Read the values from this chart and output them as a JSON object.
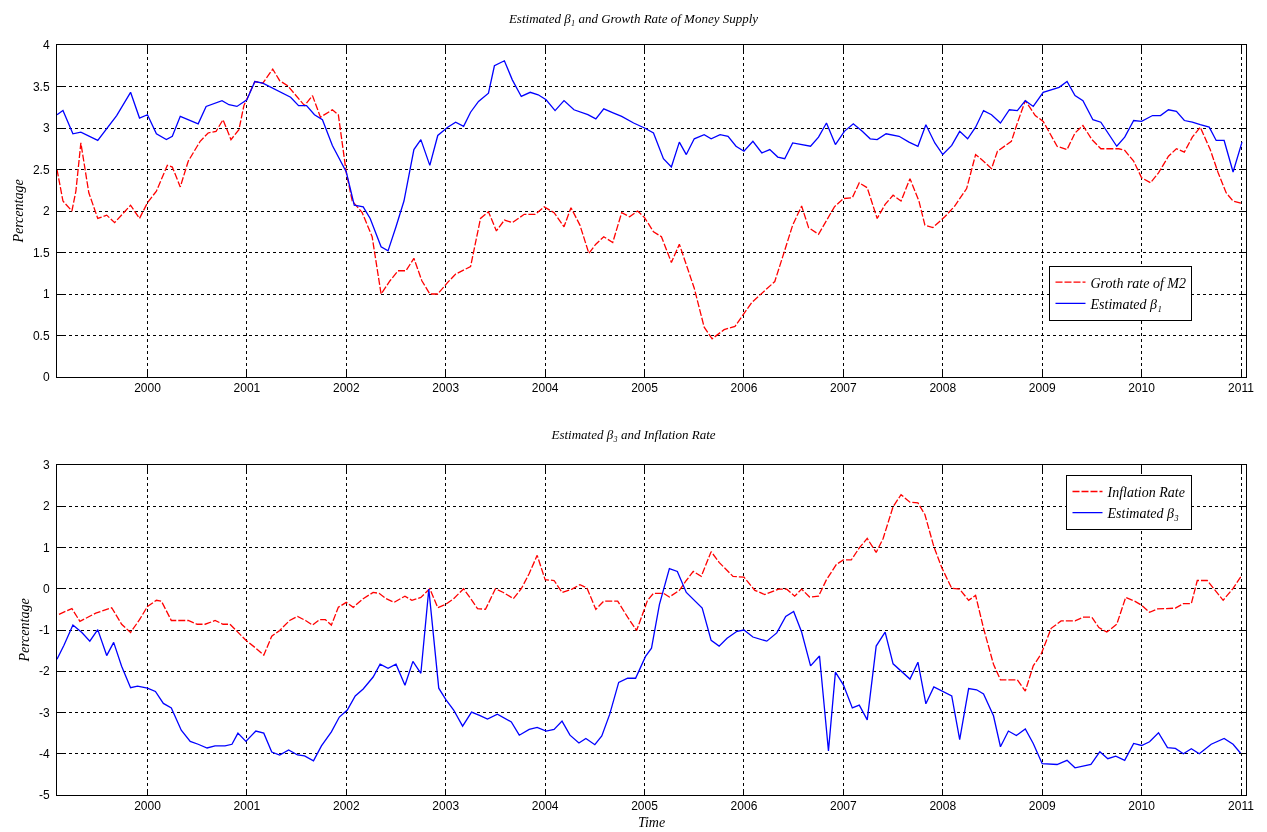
{
  "chart_data": [
    {
      "type": "line",
      "title": "Estimated β₁ and Growth Rate of Money Supply",
      "ylabel": "Percentage",
      "xlim": [
        1999.09,
        2011.05
      ],
      "xticks": [
        2000,
        2001,
        2002,
        2003,
        2004,
        2005,
        2006,
        2007,
        2008,
        2009,
        2010,
        2011
      ],
      "ylim": [
        0,
        4
      ],
      "yticks": [
        0,
        0.5,
        1,
        1.5,
        2,
        2.5,
        3,
        3.5,
        4
      ],
      "grid": true,
      "legend": "bottom right",
      "series": [
        {
          "name": "Groth rate of M2",
          "color": "#ff0000",
          "line_style": "dashed",
          "x": [
            1999.09,
            1999.15,
            1999.24,
            1999.28,
            1999.33,
            1999.41,
            1999.5,
            1999.59,
            1999.67,
            1999.83,
            1999.92,
            2000.0,
            2000.09,
            2000.2,
            2000.25,
            2000.33,
            2000.41,
            2000.53,
            2000.61,
            2000.69,
            2000.76,
            2000.84,
            2000.92,
            2000.97,
            2001.08,
            2001.16,
            2001.26,
            2001.33,
            2001.41,
            2001.58,
            2001.66,
            2001.74,
            2001.86,
            2001.92,
            2002.0,
            2002.06,
            2002.16,
            2002.26,
            2002.35,
            2002.44,
            2002.52,
            2002.6,
            2002.68,
            2002.76,
            2002.84,
            2002.92,
            2003.02,
            2003.1,
            2003.25,
            2003.35,
            2003.43,
            2003.51,
            2003.59,
            2003.67,
            2003.79,
            2003.9,
            2003.99,
            2004.09,
            2004.19,
            2004.26,
            2004.35,
            2004.44,
            2004.51,
            2004.59,
            2004.68,
            2004.77,
            2004.85,
            2004.93,
            2005.0,
            2005.09,
            2005.17,
            2005.27,
            2005.35,
            2005.5,
            2005.6,
            2005.68,
            2005.8,
            2005.91,
            2006.08,
            2006.31,
            2006.39,
            2006.49,
            2006.58,
            2006.65,
            2006.75,
            2006.91,
            2007.0,
            2007.09,
            2007.16,
            2007.24,
            2007.34,
            2007.42,
            2007.5,
            2007.58,
            2007.67,
            2007.76,
            2007.82,
            2007.9,
            2008.02,
            2008.12,
            2008.24,
            2008.33,
            2008.41,
            2008.49,
            2008.55,
            2008.69,
            2008.75,
            2008.83,
            2008.93,
            2009.01,
            2009.15,
            2009.25,
            2009.33,
            2009.41,
            2009.5,
            2009.59,
            2009.77,
            2009.83,
            2009.92,
            2010.0,
            2010.09,
            2010.17,
            2010.27,
            2010.35,
            2010.43,
            2010.51,
            2010.59,
            2010.69,
            2010.77,
            2010.85,
            2010.92,
            2011.01
          ],
          "values": [
            2.5,
            2.12,
            2.0,
            2.24,
            2.82,
            2.22,
            1.91,
            1.95,
            1.86,
            2.07,
            1.91,
            2.1,
            2.24,
            2.55,
            2.53,
            2.29,
            2.6,
            2.84,
            2.94,
            2.96,
            3.1,
            2.86,
            2.98,
            3.27,
            3.56,
            3.54,
            3.71,
            3.57,
            3.51,
            3.27,
            3.39,
            3.13,
            3.22,
            3.16,
            2.46,
            2.12,
            1.98,
            1.69,
            1.0,
            1.16,
            1.28,
            1.28,
            1.43,
            1.16,
            1.0,
            1.0,
            1.14,
            1.24,
            1.33,
            1.91,
            1.99,
            1.76,
            1.89,
            1.86,
            1.96,
            1.96,
            2.05,
            1.98,
            1.81,
            2.04,
            1.83,
            1.49,
            1.6,
            1.69,
            1.62,
            1.98,
            1.93,
            2.0,
            1.92,
            1.75,
            1.69,
            1.38,
            1.6,
            1.07,
            0.6,
            0.46,
            0.57,
            0.61,
            0.9,
            1.15,
            1.45,
            1.83,
            2.06,
            1.8,
            1.72,
            2.05,
            2.15,
            2.16,
            2.34,
            2.28,
            1.91,
            2.08,
            2.19,
            2.12,
            2.39,
            2.12,
            1.83,
            1.8,
            1.93,
            2.06,
            2.27,
            2.68,
            2.6,
            2.51,
            2.72,
            2.84,
            3.06,
            3.33,
            3.15,
            3.08,
            2.78,
            2.74,
            2.94,
            3.03,
            2.86,
            2.75,
            2.75,
            2.73,
            2.6,
            2.4,
            2.34,
            2.46,
            2.66,
            2.75,
            2.71,
            2.89,
            3.01,
            2.74,
            2.46,
            2.22,
            2.12,
            2.09
          ]
        },
        {
          "name": "Estimated β₁",
          "color": "#0000ff",
          "line_style": "solid",
          "x": [
            1999.09,
            1999.15,
            1999.25,
            1999.33,
            1999.5,
            1999.69,
            1999.83,
            1999.92,
            2000.0,
            2000.09,
            2000.19,
            2000.25,
            2000.33,
            2000.51,
            2000.59,
            2000.75,
            2000.82,
            2000.9,
            2001.0,
            2001.08,
            2001.16,
            2001.44,
            2001.52,
            2001.6,
            2001.68,
            2001.76,
            2001.86,
            2002.0,
            2002.08,
            2002.17,
            2002.24,
            2002.35,
            2002.42,
            2002.5,
            2002.58,
            2002.68,
            2002.75,
            2002.84,
            2002.92,
            2003.02,
            2003.1,
            2003.18,
            2003.25,
            2003.33,
            2003.43,
            2003.49,
            2003.59,
            2003.67,
            2003.76,
            2003.85,
            2003.93,
            2004.01,
            2004.1,
            2004.19,
            2004.29,
            2004.43,
            2004.51,
            2004.59,
            2004.69,
            2004.77,
            2004.89,
            2005.0,
            2005.09,
            2005.19,
            2005.27,
            2005.35,
            2005.42,
            2005.5,
            2005.6,
            2005.67,
            2005.76,
            2005.84,
            2005.92,
            2006.0,
            2006.09,
            2006.18,
            2006.26,
            2006.34,
            2006.41,
            2006.49,
            2006.67,
            2006.75,
            2006.83,
            2006.92,
            2007.01,
            2007.1,
            2007.19,
            2007.27,
            2007.34,
            2007.43,
            2007.56,
            2007.66,
            2007.75,
            2007.83,
            2007.92,
            2008.0,
            2008.09,
            2008.17,
            2008.25,
            2008.33,
            2008.41,
            2008.49,
            2008.58,
            2008.67,
            2008.75,
            2008.83,
            2008.91,
            2009.01,
            2009.17,
            2009.25,
            2009.33,
            2009.41,
            2009.51,
            2009.59,
            2009.75,
            2009.83,
            2009.92,
            2010.0,
            2010.11,
            2010.19,
            2010.27,
            2010.35,
            2010.43,
            2010.51,
            2010.59,
            2010.68,
            2010.75,
            2010.83,
            2010.92,
            2011.01
          ],
          "values": [
            3.16,
            3.21,
            2.93,
            2.95,
            2.85,
            3.15,
            3.43,
            3.12,
            3.16,
            2.93,
            2.86,
            2.9,
            3.14,
            3.05,
            3.26,
            3.33,
            3.28,
            3.26,
            3.34,
            3.56,
            3.54,
            3.37,
            3.27,
            3.27,
            3.16,
            3.1,
            2.79,
            2.47,
            2.07,
            2.05,
            1.91,
            1.57,
            1.52,
            1.81,
            2.12,
            2.74,
            2.86,
            2.55,
            2.91,
            3.01,
            3.07,
            3.02,
            3.19,
            3.32,
            3.42,
            3.75,
            3.81,
            3.58,
            3.38,
            3.43,
            3.4,
            3.34,
            3.21,
            3.33,
            3.22,
            3.16,
            3.11,
            3.23,
            3.18,
            3.14,
            3.06,
            3.0,
            2.94,
            2.63,
            2.53,
            2.83,
            2.68,
            2.87,
            2.92,
            2.87,
            2.92,
            2.9,
            2.78,
            2.72,
            2.84,
            2.7,
            2.74,
            2.65,
            2.63,
            2.82,
            2.78,
            2.89,
            3.06,
            2.8,
            2.96,
            3.05,
            2.96,
            2.87,
            2.86,
            2.93,
            2.9,
            2.83,
            2.78,
            3.04,
            2.82,
            2.68,
            2.79,
            2.96,
            2.87,
            3.01,
            3.21,
            3.16,
            3.06,
            3.22,
            3.21,
            3.33,
            3.26,
            3.43,
            3.49,
            3.56,
            3.39,
            3.33,
            3.1,
            3.07,
            2.78,
            2.89,
            3.09,
            3.08,
            3.15,
            3.15,
            3.22,
            3.2,
            3.09,
            3.07,
            3.04,
            3.01,
            2.85,
            2.85,
            2.47,
            2.83
          ]
        }
      ]
    },
    {
      "type": "line",
      "title": "Estimated β₃ and Inflation Rate",
      "xlabel": "Time",
      "ylabel": "Percentage",
      "xlim": [
        1999.09,
        2011.05
      ],
      "xticks": [
        2000,
        2001,
        2002,
        2003,
        2004,
        2005,
        2006,
        2007,
        2008,
        2009,
        2010,
        2011
      ],
      "ylim": [
        -5,
        3
      ],
      "yticks": [
        -5,
        -4,
        -3,
        -2,
        -1,
        0,
        1,
        2,
        3
      ],
      "grid": true,
      "legend": "top right",
      "series": [
        {
          "name": "Inflation Rate",
          "color": "#ff0000",
          "line_style": "dashed",
          "x": [
            1999.11,
            1999.24,
            1999.32,
            1999.48,
            1999.64,
            1999.74,
            1999.83,
            1999.92,
            2000.0,
            2000.09,
            2000.14,
            2000.24,
            2000.41,
            2000.5,
            2000.58,
            2000.68,
            2000.76,
            2000.83,
            2000.99,
            2001.09,
            2001.17,
            2001.25,
            2001.33,
            2001.43,
            2001.51,
            2001.59,
            2001.66,
            2001.73,
            2001.79,
            2001.85,
            2001.92,
            2002.0,
            2002.07,
            2002.17,
            2002.27,
            2002.33,
            2002.4,
            2002.48,
            2002.59,
            2002.66,
            2002.75,
            2002.84,
            2002.92,
            2003.0,
            2003.08,
            2003.18,
            2003.26,
            2003.32,
            2003.4,
            2003.5,
            2003.58,
            2003.68,
            2003.76,
            2003.84,
            2003.92,
            2004.0,
            2004.09,
            2004.17,
            2004.27,
            2004.35,
            2004.42,
            2004.51,
            2004.59,
            2004.73,
            2004.83,
            2004.92,
            2004.98,
            2005.03,
            2005.09,
            2005.19,
            2005.25,
            2005.35,
            2005.42,
            2005.49,
            2005.57,
            2005.67,
            2005.75,
            2005.89,
            2006.0,
            2006.11,
            2006.21,
            2006.35,
            2006.43,
            2006.51,
            2006.58,
            2006.66,
            2006.75,
            2006.83,
            2006.93,
            2007.0,
            2007.08,
            2007.16,
            2007.24,
            2007.33,
            2007.4,
            2007.5,
            2007.58,
            2007.67,
            2007.75,
            2007.82,
            2007.91,
            2007.99,
            2008.09,
            2008.17,
            2008.26,
            2008.33,
            2008.41,
            2008.51,
            2008.58,
            2008.75,
            2008.83,
            2008.91,
            2008.99,
            2009.09,
            2009.19,
            2009.33,
            2009.41,
            2009.5,
            2009.57,
            2009.65,
            2009.75,
            2009.84,
            2009.93,
            2010.0,
            2010.08,
            2010.16,
            2010.34,
            2010.42,
            2010.5,
            2010.56,
            2010.66,
            2010.74,
            2010.82,
            2010.92,
            2011.0
          ],
          "values": [
            -0.62,
            -0.48,
            -0.79,
            -0.59,
            -0.46,
            -0.86,
            -1.06,
            -0.75,
            -0.43,
            -0.28,
            -0.3,
            -0.77,
            -0.77,
            -0.86,
            -0.86,
            -0.77,
            -0.86,
            -0.86,
            -1.25,
            -1.44,
            -1.61,
            -1.15,
            -1.01,
            -0.77,
            -0.67,
            -0.77,
            -0.88,
            -0.75,
            -0.75,
            -0.88,
            -0.45,
            -0.33,
            -0.45,
            -0.24,
            -0.09,
            -0.11,
            -0.24,
            -0.33,
            -0.18,
            -0.28,
            -0.21,
            0.0,
            -0.46,
            -0.38,
            -0.24,
            0.0,
            -0.27,
            -0.48,
            -0.5,
            0.0,
            -0.09,
            -0.24,
            0.0,
            0.37,
            0.81,
            0.22,
            0.2,
            -0.09,
            -0.01,
            0.1,
            0.02,
            -0.5,
            -0.3,
            -0.3,
            -0.69,
            -1.01,
            -0.62,
            -0.28,
            -0.11,
            -0.11,
            -0.2,
            -0.04,
            0.2,
            0.42,
            0.3,
            0.9,
            0.64,
            0.3,
            0.28,
            -0.04,
            -0.14,
            -0.01,
            -0.01,
            -0.18,
            -0.01,
            -0.2,
            -0.18,
            0.22,
            0.59,
            0.7,
            0.7,
            0.99,
            1.22,
            0.88,
            1.22,
            1.99,
            2.28,
            2.1,
            2.08,
            1.8,
            1.02,
            0.51,
            0.01,
            -0.01,
            -0.28,
            -0.16,
            -0.96,
            -1.83,
            -2.21,
            -2.21,
            -2.48,
            -1.87,
            -1.58,
            -0.96,
            -0.78,
            -0.78,
            -0.69,
            -0.69,
            -0.94,
            -1.05,
            -0.86,
            -0.21,
            -0.3,
            -0.4,
            -0.57,
            -0.49,
            -0.47,
            -0.36,
            -0.36,
            0.2,
            0.2,
            -0.04,
            -0.28,
            0.01,
            0.3
          ]
        },
        {
          "name": "Estimated β₃",
          "color": "#0000ff",
          "line_style": "solid",
          "x": [
            1999.09,
            1999.16,
            1999.25,
            1999.34,
            1999.42,
            1999.5,
            1999.59,
            1999.66,
            1999.74,
            1999.83,
            1999.9,
            2000.0,
            2000.08,
            2000.16,
            2000.24,
            2000.34,
            2000.43,
            2000.51,
            2000.6,
            2000.68,
            2000.78,
            2000.85,
            2000.91,
            2000.99,
            2001.09,
            2001.17,
            2001.25,
            2001.33,
            2001.42,
            2001.51,
            2001.58,
            2001.67,
            2001.75,
            2001.85,
            2001.93,
            2002.01,
            2002.09,
            2002.17,
            2002.27,
            2002.34,
            2002.42,
            2002.5,
            2002.59,
            2002.67,
            2002.75,
            2002.83,
            2002.93,
            2003.0,
            2003.08,
            2003.17,
            2003.26,
            2003.34,
            2003.42,
            2003.52,
            2003.66,
            2003.74,
            2003.84,
            2003.92,
            2004.01,
            2004.09,
            2004.17,
            2004.25,
            2004.34,
            2004.41,
            2004.5,
            2004.57,
            2004.65,
            2004.74,
            2004.83,
            2004.91,
            2005.01,
            2005.07,
            2005.15,
            2005.25,
            2005.33,
            2005.42,
            2005.58,
            2005.67,
            2005.75,
            2005.83,
            2005.93,
            2006.0,
            2006.09,
            2006.23,
            2006.33,
            2006.42,
            2006.5,
            2006.58,
            2006.67,
            2006.76,
            2006.85,
            2006.92,
            2007.0,
            2007.09,
            2007.16,
            2007.24,
            2007.33,
            2007.42,
            2007.5,
            2007.67,
            2007.75,
            2007.83,
            2007.91,
            2008.09,
            2008.17,
            2008.26,
            2008.34,
            2008.41,
            2008.51,
            2008.58,
            2008.66,
            2008.74,
            2008.83,
            2008.91,
            2009.0,
            2009.15,
            2009.25,
            2009.33,
            2009.49,
            2009.58,
            2009.66,
            2009.74,
            2009.83,
            2009.92,
            2010.0,
            2010.08,
            2010.17,
            2010.26,
            2010.34,
            2010.42,
            2010.5,
            2010.58,
            2010.7,
            2010.83,
            2010.92,
            2011.0
          ],
          "values": [
            -1.71,
            -1.37,
            -0.88,
            -1.06,
            -1.27,
            -0.99,
            -1.62,
            -1.3,
            -1.88,
            -2.4,
            -2.36,
            -2.41,
            -2.49,
            -2.78,
            -2.89,
            -3.43,
            -3.7,
            -3.77,
            -3.86,
            -3.81,
            -3.81,
            -3.77,
            -3.5,
            -3.7,
            -3.45,
            -3.5,
            -3.96,
            -4.03,
            -3.91,
            -4.03,
            -4.05,
            -4.17,
            -3.81,
            -3.47,
            -3.11,
            -2.94,
            -2.6,
            -2.43,
            -2.14,
            -1.83,
            -1.93,
            -1.83,
            -2.34,
            -1.76,
            -2.05,
            -0.01,
            -2.41,
            -2.68,
            -2.94,
            -3.33,
            -2.99,
            -3.07,
            -3.16,
            -3.04,
            -3.23,
            -3.55,
            -3.41,
            -3.36,
            -3.45,
            -3.41,
            -3.21,
            -3.55,
            -3.74,
            -3.63,
            -3.78,
            -3.57,
            -3.04,
            -2.27,
            -2.17,
            -2.17,
            -1.64,
            -1.44,
            -0.38,
            0.49,
            0.42,
            -0.09,
            -0.47,
            -1.25,
            -1.39,
            -1.2,
            -1.03,
            -1.0,
            -1.17,
            -1.27,
            -1.07,
            -0.67,
            -0.55,
            -1.05,
            -1.87,
            -1.63,
            -3.93,
            -2.02,
            -2.33,
            -2.89,
            -2.82,
            -3.18,
            -1.39,
            -1.05,
            -1.82,
            -2.19,
            -1.78,
            -2.79,
            -2.38,
            -2.6,
            -3.66,
            -2.42,
            -2.45,
            -2.55,
            -3.08,
            -3.83,
            -3.45,
            -3.56,
            -3.4,
            -3.75,
            -4.24,
            -4.26,
            -4.16,
            -4.34,
            -4.26,
            -3.95,
            -4.12,
            -4.06,
            -4.16,
            -3.75,
            -3.8,
            -3.71,
            -3.49,
            -3.85,
            -3.87,
            -4.0,
            -3.88,
            -4.0,
            -3.77,
            -3.63,
            -3.77,
            -4.0
          ]
        }
      ]
    }
  ]
}
